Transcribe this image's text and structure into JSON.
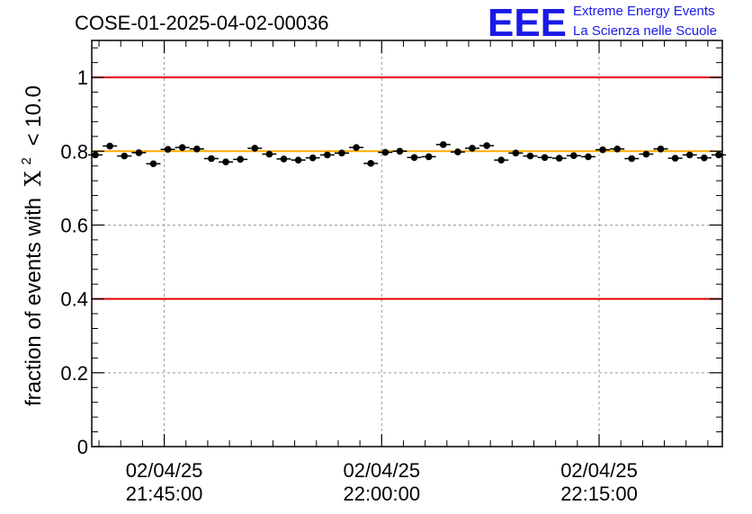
{
  "chart_data": {
    "type": "scatter",
    "title": "COSE-01-2025-04-02-00036",
    "ylabel": "fraction of events with",
    "ylabel_symbol": "X",
    "ylabel_superscript": "2",
    "ylabel_tail": "< 10.0",
    "ylim": [
      0,
      1.1
    ],
    "y_ticks": [
      0,
      0.2,
      0.4,
      0.6,
      0.8,
      1
    ],
    "y_tick_labels": [
      "0",
      "0.2",
      "0.4",
      "0.6",
      "0.8",
      "1"
    ],
    "x_unit": "minutes after 21:40:00",
    "xlim": [
      0,
      43.5
    ],
    "x_ticks": [
      5,
      20,
      35
    ],
    "x_tick_labels": [
      {
        "date": "02/04/25",
        "time": "21:45:00"
      },
      {
        "date": "02/04/25",
        "time": "22:00:00"
      },
      {
        "date": "02/04/25",
        "time": "22:15:00"
      }
    ],
    "grid": true,
    "reference_lines": [
      {
        "name": "upper-limit",
        "value": 1.0,
        "color": "#e60000"
      },
      {
        "name": "lower-limit",
        "value": 0.4,
        "color": "#e60000"
      },
      {
        "name": "reference",
        "value": 0.8,
        "color": "#ffaa00"
      }
    ],
    "series": [
      {
        "name": "fraction",
        "x": [
          0.25,
          1.25,
          2.25,
          3.25,
          4.25,
          5.25,
          6.25,
          7.25,
          8.25,
          9.25,
          10.25,
          11.25,
          12.25,
          13.25,
          14.25,
          15.25,
          16.25,
          17.25,
          18.25,
          19.25,
          20.25,
          21.25,
          22.25,
          23.25,
          24.25,
          25.25,
          26.25,
          27.25,
          28.25,
          29.25,
          30.25,
          31.25,
          32.25,
          33.25,
          34.25,
          35.25,
          36.25,
          37.25,
          38.25,
          39.25,
          40.25,
          41.25,
          42.25,
          43.25
        ],
        "y": [
          0.79,
          0.814,
          0.787,
          0.796,
          0.766,
          0.805,
          0.81,
          0.806,
          0.78,
          0.771,
          0.778,
          0.808,
          0.792,
          0.779,
          0.776,
          0.782,
          0.79,
          0.795,
          0.81,
          0.767,
          0.797,
          0.8,
          0.783,
          0.785,
          0.818,
          0.798,
          0.808,
          0.815,
          0.776,
          0.795,
          0.787,
          0.783,
          0.781,
          0.788,
          0.785,
          0.804,
          0.806,
          0.78,
          0.792,
          0.806,
          0.781,
          0.79,
          0.782,
          0.79
        ],
        "errors": [
          0.008,
          0.008,
          0.008,
          0.008,
          0.008,
          0.008,
          0.008,
          0.008,
          0.008,
          0.008,
          0.008,
          0.008,
          0.008,
          0.008,
          0.008,
          0.008,
          0.008,
          0.008,
          0.008,
          0.008,
          0.008,
          0.008,
          0.008,
          0.008,
          0.008,
          0.008,
          0.008,
          0.008,
          0.008,
          0.008,
          0.008,
          0.008,
          0.008,
          0.008,
          0.008,
          0.008,
          0.008,
          0.008,
          0.008,
          0.008,
          0.008,
          0.008,
          0.008,
          0.008
        ]
      }
    ]
  },
  "logo": {
    "letters": "EEE",
    "line1": "Extreme Energy Events",
    "line2": "La Scienza nelle Scuole",
    "color": "#1a1ae6"
  }
}
